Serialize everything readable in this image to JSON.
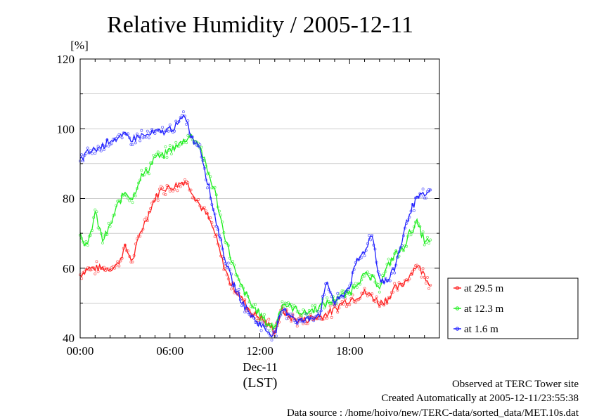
{
  "chart_data": {
    "type": "line",
    "title": "Relative Humidity / 2005-12-11",
    "ylabel": "[%]",
    "ylim": [
      40,
      120
    ],
    "yticks": [
      "40",
      "60",
      "80",
      "100",
      "120"
    ],
    "xlim": [
      0,
      24
    ],
    "xticks": [
      {
        "hour": 0,
        "label": "00:00"
      },
      {
        "hour": 6,
        "label": "06:00"
      },
      {
        "hour": 12,
        "label": "12:00"
      },
      {
        "hour": 18,
        "label": "18:00"
      }
    ],
    "x_date_label": "Dec-11",
    "x_unit_label": "(LST)",
    "grid": "horizontal",
    "legend_position": "right",
    "x_hours": [
      0,
      0.5,
      1,
      1.5,
      2,
      2.5,
      3,
      3.5,
      4,
      4.5,
      5,
      5.5,
      6,
      6.5,
      7,
      7.5,
      8,
      8.5,
      9,
      9.5,
      10,
      10.5,
      11,
      11.5,
      12,
      12.5,
      13,
      13.5,
      14,
      14.5,
      15,
      15.5,
      16,
      16.5,
      17,
      17.5,
      18,
      18.5,
      19,
      19.5,
      20,
      20.5,
      21,
      21.5,
      22,
      22.5,
      23,
      23.5
    ],
    "series": [
      {
        "name": "at 29.5 m",
        "color": "#ff2020",
        "values": [
          58,
          60,
          60,
          60,
          60,
          61,
          66,
          62,
          70,
          75,
          80,
          83,
          83,
          84,
          85,
          82,
          78,
          75,
          70,
          62,
          56,
          53,
          50,
          47,
          46,
          44,
          42,
          48,
          46,
          45,
          45,
          46,
          46,
          47,
          48,
          50,
          51,
          52,
          53,
          52,
          50,
          51,
          54,
          55,
          58,
          61,
          58,
          55
        ]
      },
      {
        "name": "at 12.3 m",
        "color": "#20ee20",
        "values": [
          70,
          66,
          76,
          68,
          72,
          78,
          82,
          80,
          86,
          88,
          92,
          92,
          94,
          95,
          97,
          98,
          95,
          88,
          82,
          72,
          64,
          57,
          53,
          49,
          47,
          44,
          43,
          50,
          49,
          48,
          47,
          48,
          49,
          50,
          51,
          52,
          53,
          56,
          58,
          57,
          55,
          60,
          64,
          65,
          70,
          73,
          68,
          67
        ]
      },
      {
        "name": "at 1.6 m",
        "color": "#2020ff",
        "values": [
          91,
          93,
          94,
          95,
          97,
          97,
          98,
          97,
          98,
          98,
          99,
          99,
          100,
          101,
          104,
          97,
          95,
          85,
          75,
          66,
          58,
          53,
          49,
          46,
          44,
          42,
          41,
          48,
          47,
          45,
          45,
          46,
          47,
          56,
          50,
          52,
          55,
          62,
          65,
          70,
          57,
          56,
          60,
          68,
          76,
          80,
          81,
          82
        ]
      }
    ]
  },
  "footer": {
    "line1": "Observed at TERC Tower site",
    "line2": "Created Automatically at 2005-12-11/23:55:38",
    "line3": "Data source : /home/hoivo/new/TERC-data/sorted_data/MET.10s.dat"
  }
}
